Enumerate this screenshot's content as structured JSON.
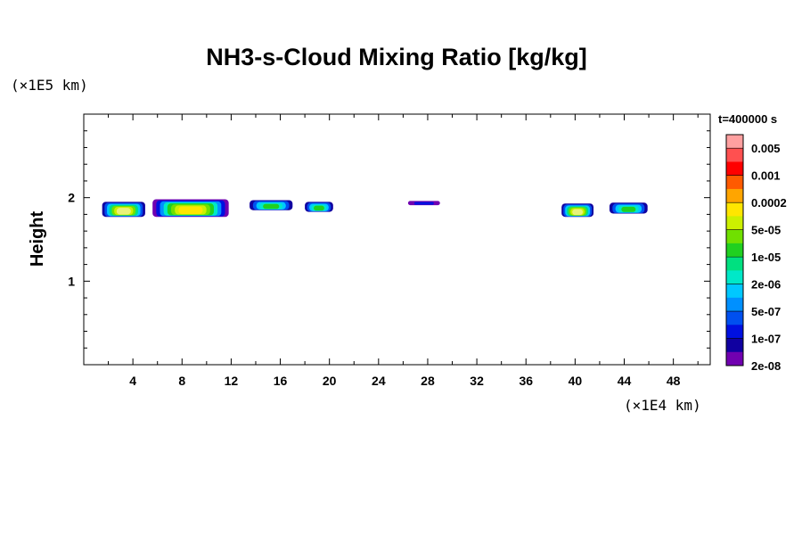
{
  "chart_data": {
    "type": "heatmap",
    "title": "NH3-s-Cloud Mixing Ratio [kg/kg]",
    "xlabel": "",
    "ylabel": "Height",
    "x_unit": "(×1E4 km)",
    "y_unit": "(×1E5 km)",
    "time_label": "t=400000 s",
    "xlim": [
      0,
      51
    ],
    "ylim": [
      0,
      3
    ],
    "x_ticks": [
      4,
      8,
      12,
      16,
      20,
      24,
      28,
      32,
      36,
      40,
      44,
      48
    ],
    "y_ticks": [
      1,
      2
    ],
    "colorbar": {
      "labels": [
        "0.005",
        "0.001",
        "0.0002",
        "5e-05",
        "1e-05",
        "2e-06",
        "5e-07",
        "1e-07",
        "2e-08"
      ],
      "colors": [
        "#ffa0a0",
        "#ff5050",
        "#ff0000",
        "#ff5a00",
        "#ffa500",
        "#ffe600",
        "#ccf000",
        "#70e000",
        "#20d020",
        "#00e080",
        "#00e8c8",
        "#00c8ff",
        "#0090ff",
        "#0050f0",
        "#0010e0",
        "#1000a0",
        "#7000b0"
      ]
    },
    "cloud_cells": [
      {
        "x_start": 1.5,
        "x_end": 5.0,
        "y_bottom": 1.77,
        "y_top": 1.95,
        "max_level": "5e-05"
      },
      {
        "x_start": 5.6,
        "x_end": 11.8,
        "y_bottom": 1.77,
        "y_top": 1.98,
        "max_level": "0.0002"
      },
      {
        "x_start": 13.5,
        "x_end": 17.0,
        "y_bottom": 1.85,
        "y_top": 1.97,
        "max_level": "1e-05"
      },
      {
        "x_start": 18.0,
        "x_end": 20.3,
        "y_bottom": 1.83,
        "y_top": 1.95,
        "max_level": "1e-05"
      },
      {
        "x_start": 26.4,
        "x_end": 29.0,
        "y_bottom": 1.91,
        "y_top": 1.96,
        "max_level": "1e-07"
      },
      {
        "x_start": 38.9,
        "x_end": 41.5,
        "y_bottom": 1.77,
        "y_top": 1.93,
        "max_level": "5e-05"
      },
      {
        "x_start": 42.8,
        "x_end": 45.9,
        "y_bottom": 1.81,
        "y_top": 1.94,
        "max_level": "1e-05"
      }
    ]
  }
}
